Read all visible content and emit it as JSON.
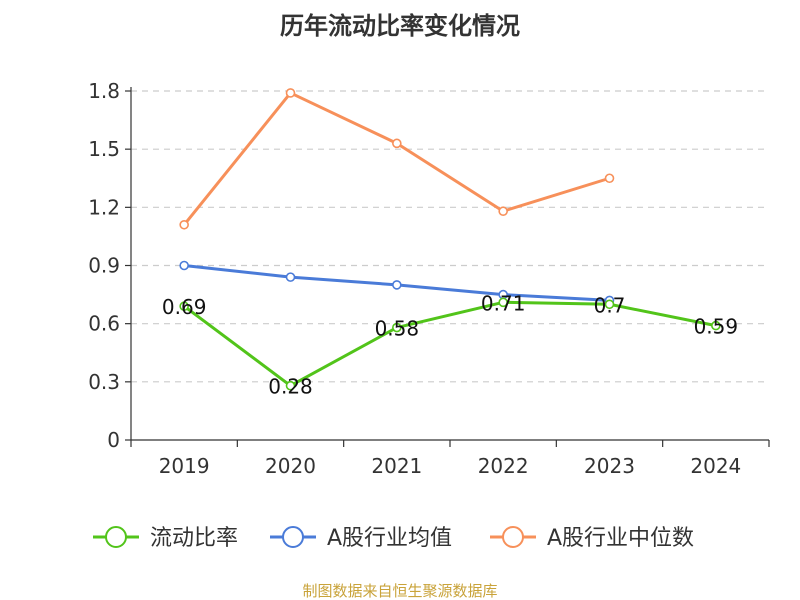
{
  "chart_data": {
    "type": "line",
    "title": "历年流动比率变化情况",
    "categories": [
      "2019",
      "2020",
      "2021",
      "2022",
      "2023",
      "2024"
    ],
    "ylim": [
      0,
      1.8
    ],
    "y_ticks": [
      "0",
      "0.3",
      "0.6",
      "0.9",
      "1.2",
      "1.5",
      "1.8"
    ],
    "grid": true,
    "legend_position": "bottom",
    "series": [
      {
        "name": "流动比率",
        "color": "#52c41a",
        "values": [
          0.69,
          0.28,
          0.58,
          0.71,
          0.7,
          0.59
        ],
        "labels": [
          "0.69",
          "0.28",
          "0.58",
          "0.71",
          "0.7",
          "0.59"
        ]
      },
      {
        "name": "A股行业均值",
        "color": "#4a7bd8",
        "values": [
          0.9,
          0.84,
          0.8,
          0.75,
          0.72,
          null
        ]
      },
      {
        "name": "A股行业中位数",
        "color": "#f7905a",
        "values": [
          1.11,
          1.79,
          1.53,
          1.18,
          1.35,
          null
        ]
      }
    ],
    "source": "制图数据来自恒生聚源数据库"
  }
}
